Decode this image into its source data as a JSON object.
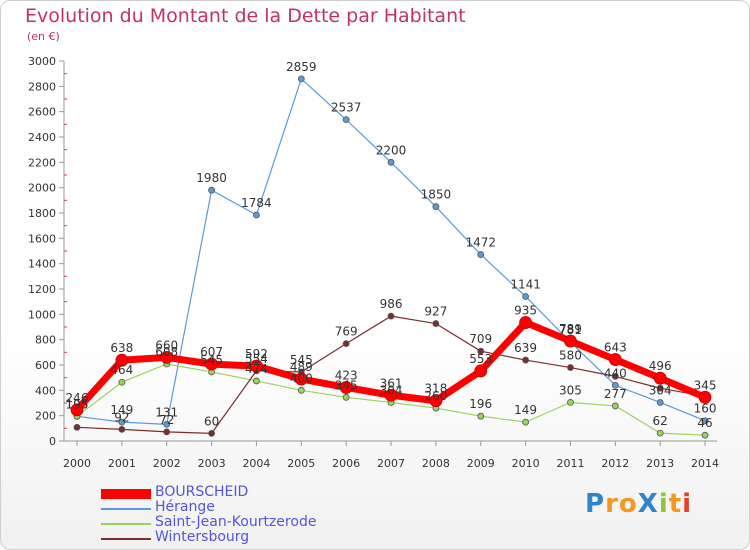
{
  "title": "Evolution du Montant de la Dette par Habitant",
  "subtitle": "(en €)",
  "logo": {
    "text": "ProXiti",
    "letters": [
      {
        "ch": "P",
        "color": "#2e86c9"
      },
      {
        "ch": "r",
        "color": "#f39a1e"
      },
      {
        "ch": "o",
        "color": "#f39a1e"
      },
      {
        "ch": "X",
        "color": "#2e86c9"
      },
      {
        "ch": "i",
        "color": "#8cc63f"
      },
      {
        "ch": "t",
        "color": "#f39a1e"
      },
      {
        "ch": "i",
        "color": "#e2412b"
      }
    ]
  },
  "chart_data": {
    "type": "line",
    "title": "Evolution du Montant de la Dette par Habitant",
    "subtitle": "(en €)",
    "x": [
      2000,
      2001,
      2002,
      2003,
      2004,
      2005,
      2006,
      2007,
      2008,
      2009,
      2010,
      2011,
      2012,
      2013,
      2014
    ],
    "ylim": [
      0,
      3000
    ],
    "yticks": [
      0,
      200,
      400,
      600,
      800,
      1000,
      1200,
      1400,
      1600,
      1800,
      2000,
      2200,
      2400,
      2600,
      2800,
      3000
    ],
    "grid": false,
    "legend": "bottom-left",
    "series": [
      {
        "name": "Hérange",
        "color": "#5b9bd5",
        "width": 1.2,
        "marker": 3,
        "values": [
          195,
          149,
          131,
          1980,
          1784,
          2859,
          2537,
          2200,
          1850,
          1472,
          1141,
          781,
          440,
          304,
          160
        ],
        "labels": [
          "195",
          "149",
          "131",
          "1980",
          "1784",
          "2859",
          "2537",
          "2200",
          "1850",
          "1472",
          "1141",
          "781",
          "440",
          "304",
          "160"
        ]
      },
      {
        "name": "Saint-Jean-Kourtzerode",
        "color": "#9ad25c",
        "width": 1.2,
        "marker": 3,
        "values": [
          195,
          464,
          608,
          545,
          474,
          400,
          345,
          304,
          260,
          196,
          149,
          305,
          277,
          62,
          46
        ],
        "labels": [
          "195",
          "464",
          "608",
          "545",
          "474",
          "400",
          "345",
          "304",
          "260",
          "196",
          "149",
          "305",
          "277",
          "62",
          "46"
        ]
      },
      {
        "name": "Wintersbourg",
        "color": "#7a2e2e",
        "width": 1.2,
        "marker": 3,
        "values": [
          108,
          92,
          72,
          60,
          554,
          545,
          769,
          986,
          927,
          709,
          639,
          580,
          510,
          417,
          353
        ],
        "labels": [
          "",
          "92",
          "72",
          "60",
          "554",
          "545",
          "769",
          "986",
          "927",
          "709",
          "639",
          "580",
          "",
          "",
          ""
        ]
      },
      {
        "name": "BOURSCHEID",
        "color": "#ff0000",
        "width": 7,
        "marker": 6,
        "values": [
          246,
          638,
          660,
          607,
          592,
          489,
          423,
          361,
          318,
          553,
          935,
          789,
          643,
          496,
          345
        ],
        "labels": [
          "246",
          "638",
          "660",
          "607",
          "592",
          "489",
          "423",
          "361",
          "318",
          "553",
          "935",
          "789",
          "643",
          "496",
          "345"
        ]
      }
    ]
  }
}
